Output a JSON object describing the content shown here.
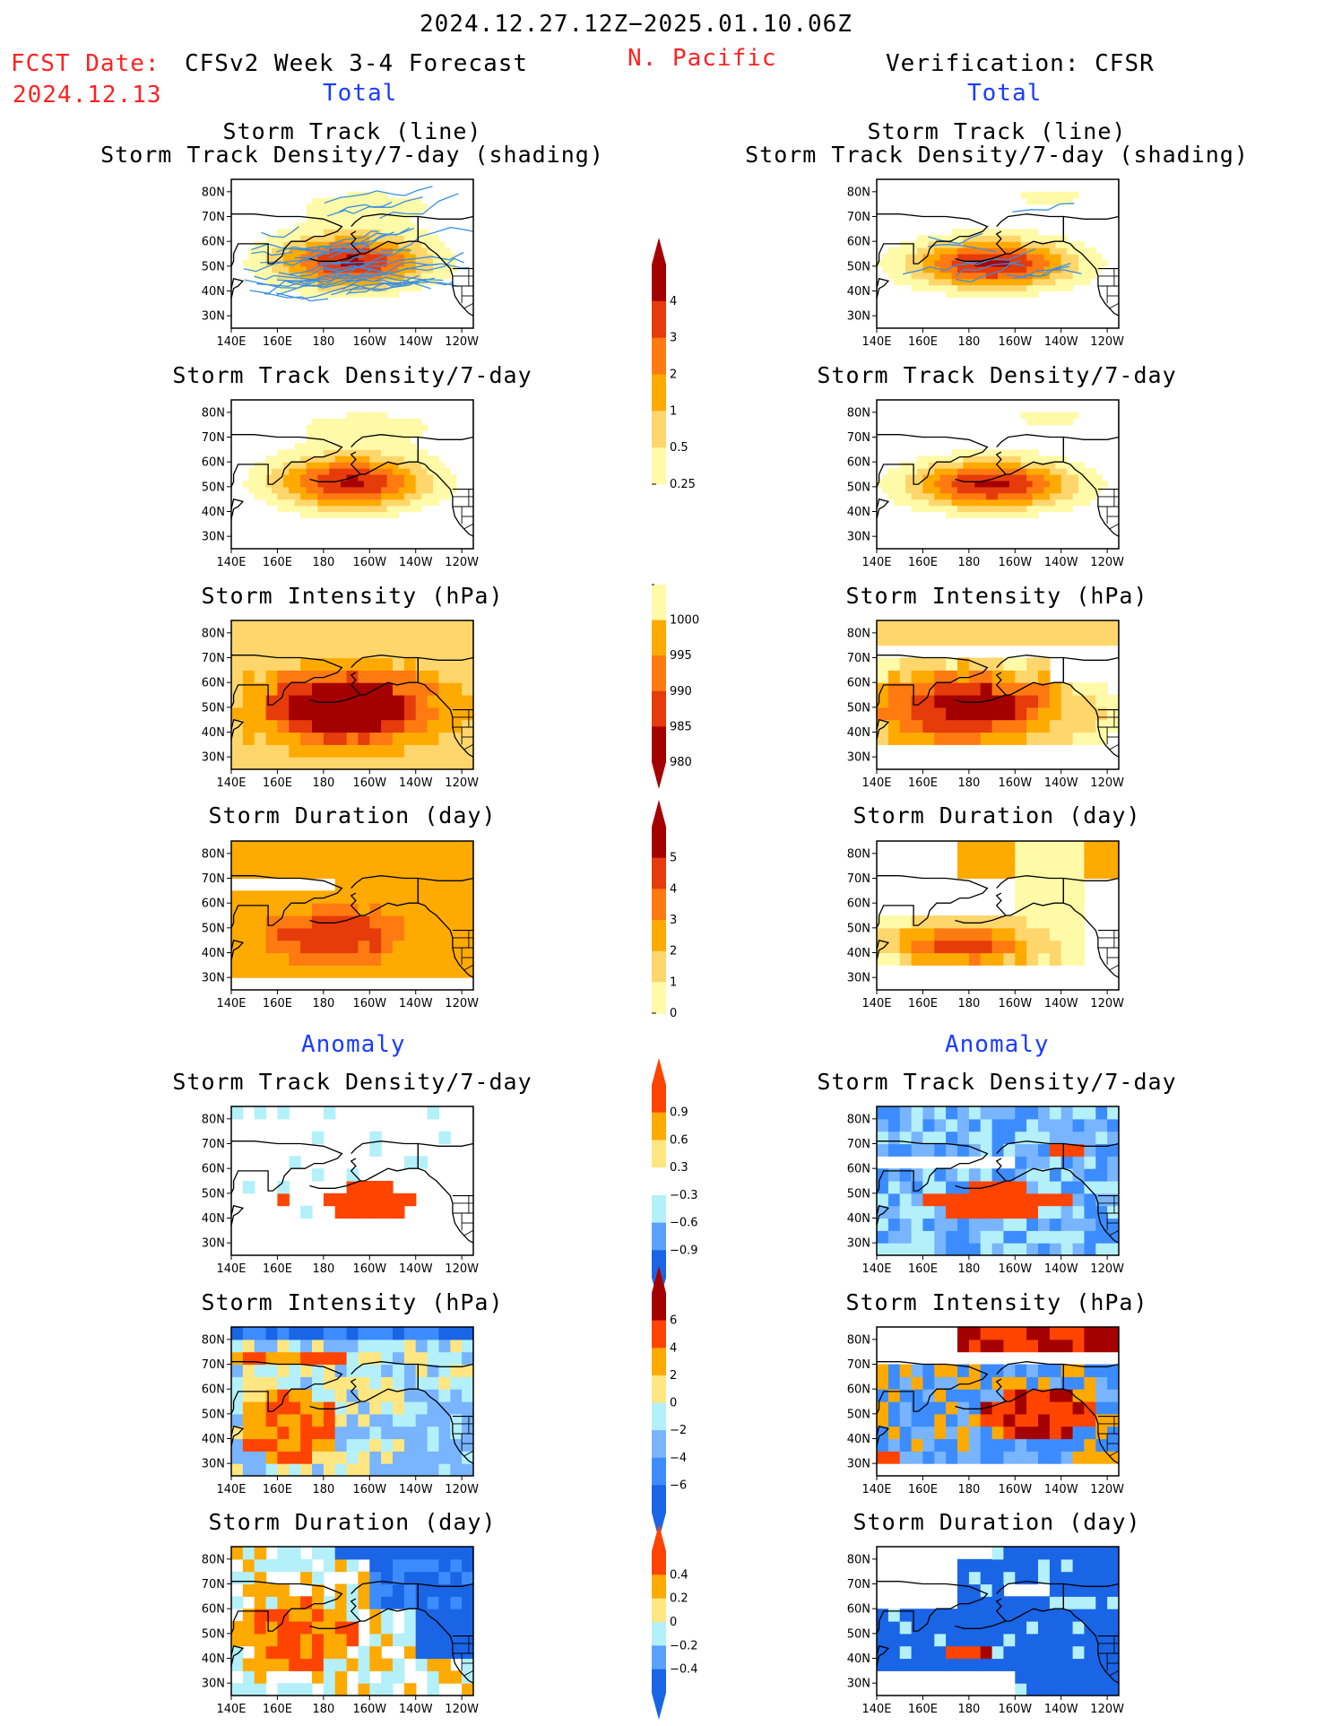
{
  "header": {
    "date_range": "2024.12.27.12Z−2025.01.10.06Z",
    "fcst_label": "FCST Date:",
    "fcst_date": "2024.12.13",
    "model_title": "CFSv2 Week 3-4 Forecast",
    "region": "N. Pacific",
    "verification": "Verification: CFSR",
    "total_left": "Total",
    "total_right": "Total",
    "anomaly_left": "Anomaly",
    "anomaly_right": "Anomaly"
  },
  "panel_titles": {
    "track_line": "Storm Track (line)",
    "track_shading": "Storm Track Density/7-day (shading)",
    "density": "Storm Track Density/7-day",
    "intensity": "Storm Intensity (hPa)",
    "duration": "Storm Duration (day)"
  },
  "map_axes": {
    "lon_ticks": [
      "140E",
      "160E",
      "180",
      "160W",
      "140W",
      "120W"
    ],
    "lat_ticks": [
      "80N",
      "70N",
      "60N",
      "50N",
      "40N",
      "30N"
    ],
    "lon_range": [
      140,
      245
    ],
    "lat_range": [
      25,
      85
    ]
  },
  "colorbars": [
    {
      "id": "density_total",
      "labels": [
        "0.25",
        "0.5",
        "1",
        "2",
        "3",
        "4"
      ],
      "colors": [
        "#fffaa8",
        "#ffd66b",
        "#ffaa00",
        "#ff7a10",
        "#e63b0a",
        "#a50000"
      ]
    },
    {
      "id": "intensity_total",
      "labels": [
        "1000",
        "995",
        "990",
        "985",
        "980"
      ],
      "colors": [
        "#fffaa8",
        "#ffaa00",
        "#ff7a10",
        "#e63b0a",
        "#a50000"
      ]
    },
    {
      "id": "duration_total",
      "labels": [
        "0",
        "1",
        "2",
        "3",
        "4",
        "5"
      ],
      "colors": [
        "#fffaa8",
        "#ffd66b",
        "#ffaa00",
        "#ff7a10",
        "#e63b0a",
        "#a50000"
      ]
    },
    {
      "id": "density_anom",
      "labels": [
        "0.9",
        "0.6",
        "0.3",
        "−0.3",
        "−0.6",
        "−0.9"
      ],
      "colors": [
        "#ff4400",
        "#ffaa00",
        "#ffe680",
        "#ffffff",
        "#b4f0fa",
        "#5aa0ff",
        "#1a64e6"
      ]
    },
    {
      "id": "intensity_anom",
      "labels": [
        "6",
        "4",
        "2",
        "0",
        "−2",
        "−4",
        "−6"
      ],
      "colors": [
        "#a50000",
        "#ff4400",
        "#ffaa00",
        "#ffe680",
        "#b4f0fa",
        "#78b4ff",
        "#3c8cff",
        "#1a64e6"
      ]
    },
    {
      "id": "duration_anom",
      "labels": [
        "0.4",
        "0.2",
        "0",
        "−0.2",
        "−0.4"
      ],
      "colors": [
        "#ff4400",
        "#ffaa00",
        "#ffe680",
        "#b4f0fa",
        "#5aa0ff",
        "#1a64e6"
      ]
    }
  ],
  "chart_data": [
    {
      "type": "heatmap",
      "panel": "forecast-track",
      "title": "Storm Track (line) / Storm Track Density/7-day (shading)",
      "overlay": "storm track lines",
      "core_max": 4,
      "center": "50N 170W"
    },
    {
      "type": "heatmap",
      "panel": "verification-track",
      "title": "Storm Track (line) / Storm Track Density/7-day (shading)",
      "overlay": "storm track lines",
      "core_max": 4,
      "center": "50N 170W"
    },
    {
      "type": "heatmap",
      "panel": "forecast-density",
      "title": "Storm Track Density/7-day",
      "levels": [
        0.25,
        0.5,
        1,
        2,
        3,
        4
      ]
    },
    {
      "type": "heatmap",
      "panel": "verification-density",
      "title": "Storm Track Density/7-day",
      "levels": [
        0.25,
        0.5,
        1,
        2,
        3,
        4
      ]
    },
    {
      "type": "heatmap",
      "panel": "forecast-intensity",
      "title": "Storm Intensity (hPa)",
      "levels": [
        1000,
        995,
        990,
        985,
        980
      ]
    },
    {
      "type": "heatmap",
      "panel": "verification-intensity",
      "title": "Storm Intensity (hPa)",
      "levels": [
        1000,
        995,
        990,
        985,
        980
      ]
    },
    {
      "type": "heatmap",
      "panel": "forecast-duration",
      "title": "Storm Duration (day)",
      "levels": [
        0,
        1,
        2,
        3,
        4,
        5
      ]
    },
    {
      "type": "heatmap",
      "panel": "verification-duration",
      "title": "Storm Duration (day)",
      "levels": [
        0,
        1,
        2,
        3,
        4,
        5
      ]
    },
    {
      "type": "heatmap",
      "panel": "forecast-density-anom",
      "title": "Storm Track Density/7-day",
      "levels": [
        -0.9,
        -0.6,
        -0.3,
        0.3,
        0.6,
        0.9
      ]
    },
    {
      "type": "heatmap",
      "panel": "verification-density-anom",
      "title": "Storm Track Density/7-day",
      "levels": [
        -0.9,
        -0.6,
        -0.3,
        0.3,
        0.6,
        0.9
      ]
    },
    {
      "type": "heatmap",
      "panel": "forecast-intensity-anom",
      "title": "Storm Intensity (hPa)",
      "levels": [
        -6,
        -4,
        -2,
        0,
        2,
        4,
        6
      ]
    },
    {
      "type": "heatmap",
      "panel": "verification-intensity-anom",
      "title": "Storm Intensity (hPa)",
      "levels": [
        -6,
        -4,
        -2,
        0,
        2,
        4,
        6
      ]
    },
    {
      "type": "heatmap",
      "panel": "forecast-duration-anom",
      "title": "Storm Duration (day)",
      "levels": [
        -0.4,
        -0.2,
        0,
        0.2,
        0.4
      ]
    },
    {
      "type": "heatmap",
      "panel": "verification-duration-anom",
      "title": "Storm Duration (day)",
      "levels": [
        -0.4,
        -0.2,
        0,
        0.2,
        0.4
      ]
    }
  ]
}
